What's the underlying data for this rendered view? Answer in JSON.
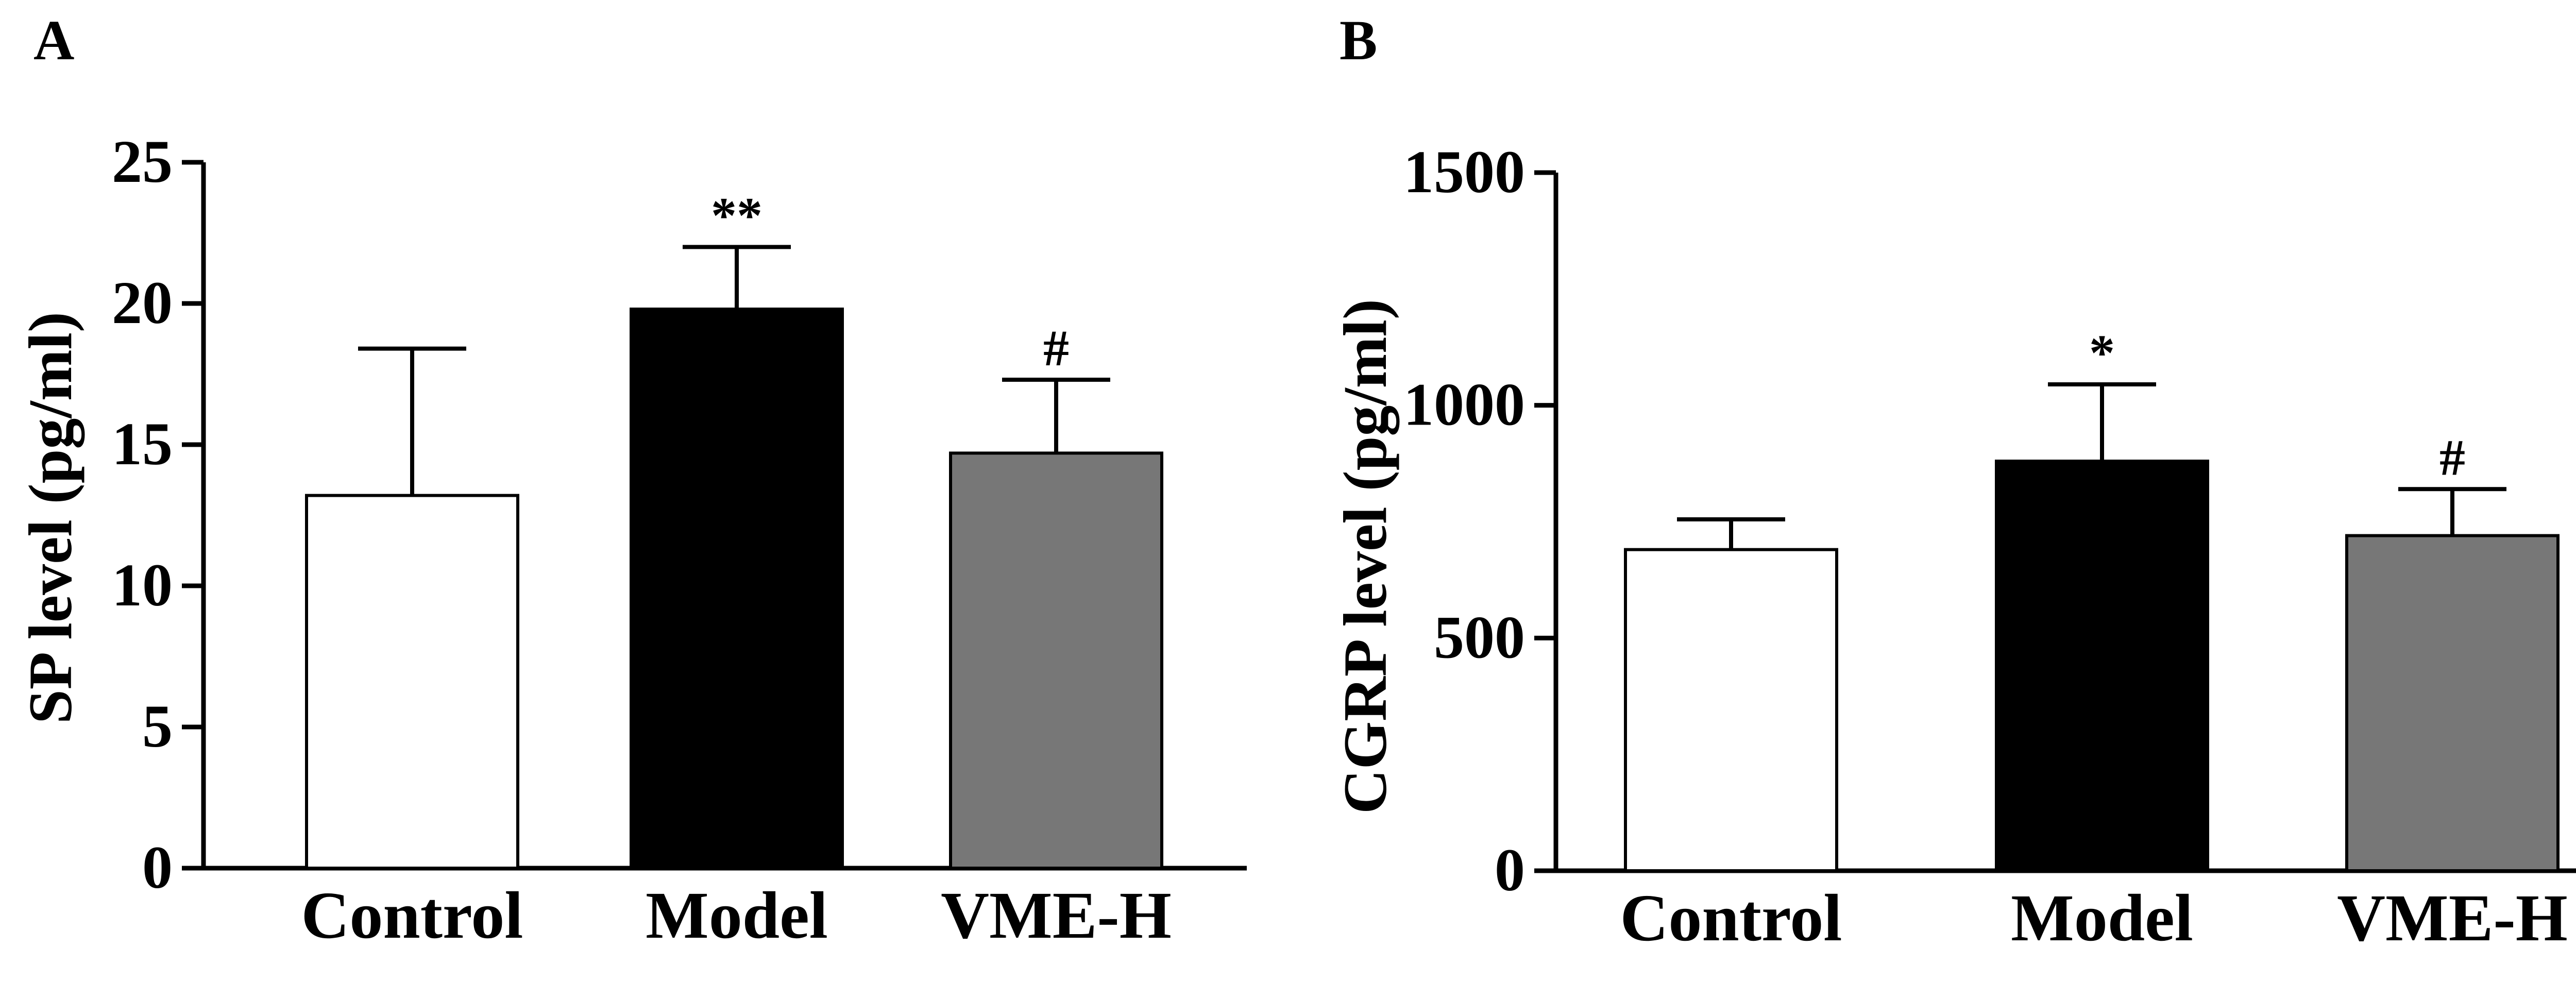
{
  "colors": {
    "control": "#ffffff",
    "model": "#000000",
    "vme_h": "#777777",
    "stroke": "#000000"
  },
  "chart_data": [
    {
      "panel_label": "A",
      "type": "bar",
      "categories": [
        "Control",
        "Model",
        "VME-H"
      ],
      "values": [
        13.2,
        19.8,
        14.7
      ],
      "errors": [
        5.2,
        2.2,
        2.6
      ],
      "annotations": [
        "",
        "**",
        "#"
      ],
      "ylabel": "SP level (pg/ml)",
      "ylim": [
        0,
        25
      ],
      "yticks": [
        0,
        5,
        10,
        15,
        20,
        25
      ],
      "yticklabels": [
        "0",
        "5",
        "10",
        "15",
        "20",
        "25"
      ],
      "grid": false
    },
    {
      "panel_label": "B",
      "type": "bar",
      "categories": [
        "Control",
        "Model",
        "VME-H"
      ],
      "values": [
        690,
        880,
        720
      ],
      "errors": [
        65,
        165,
        100
      ],
      "annotations": [
        "",
        "*",
        "#"
      ],
      "ylabel": "CGRP level (pg/ml)",
      "ylim": [
        0,
        1500
      ],
      "yticks": [
        0,
        500,
        1000,
        1500
      ],
      "yticklabels": [
        "0",
        "500",
        "1000",
        "1500"
      ],
      "grid": false
    }
  ]
}
